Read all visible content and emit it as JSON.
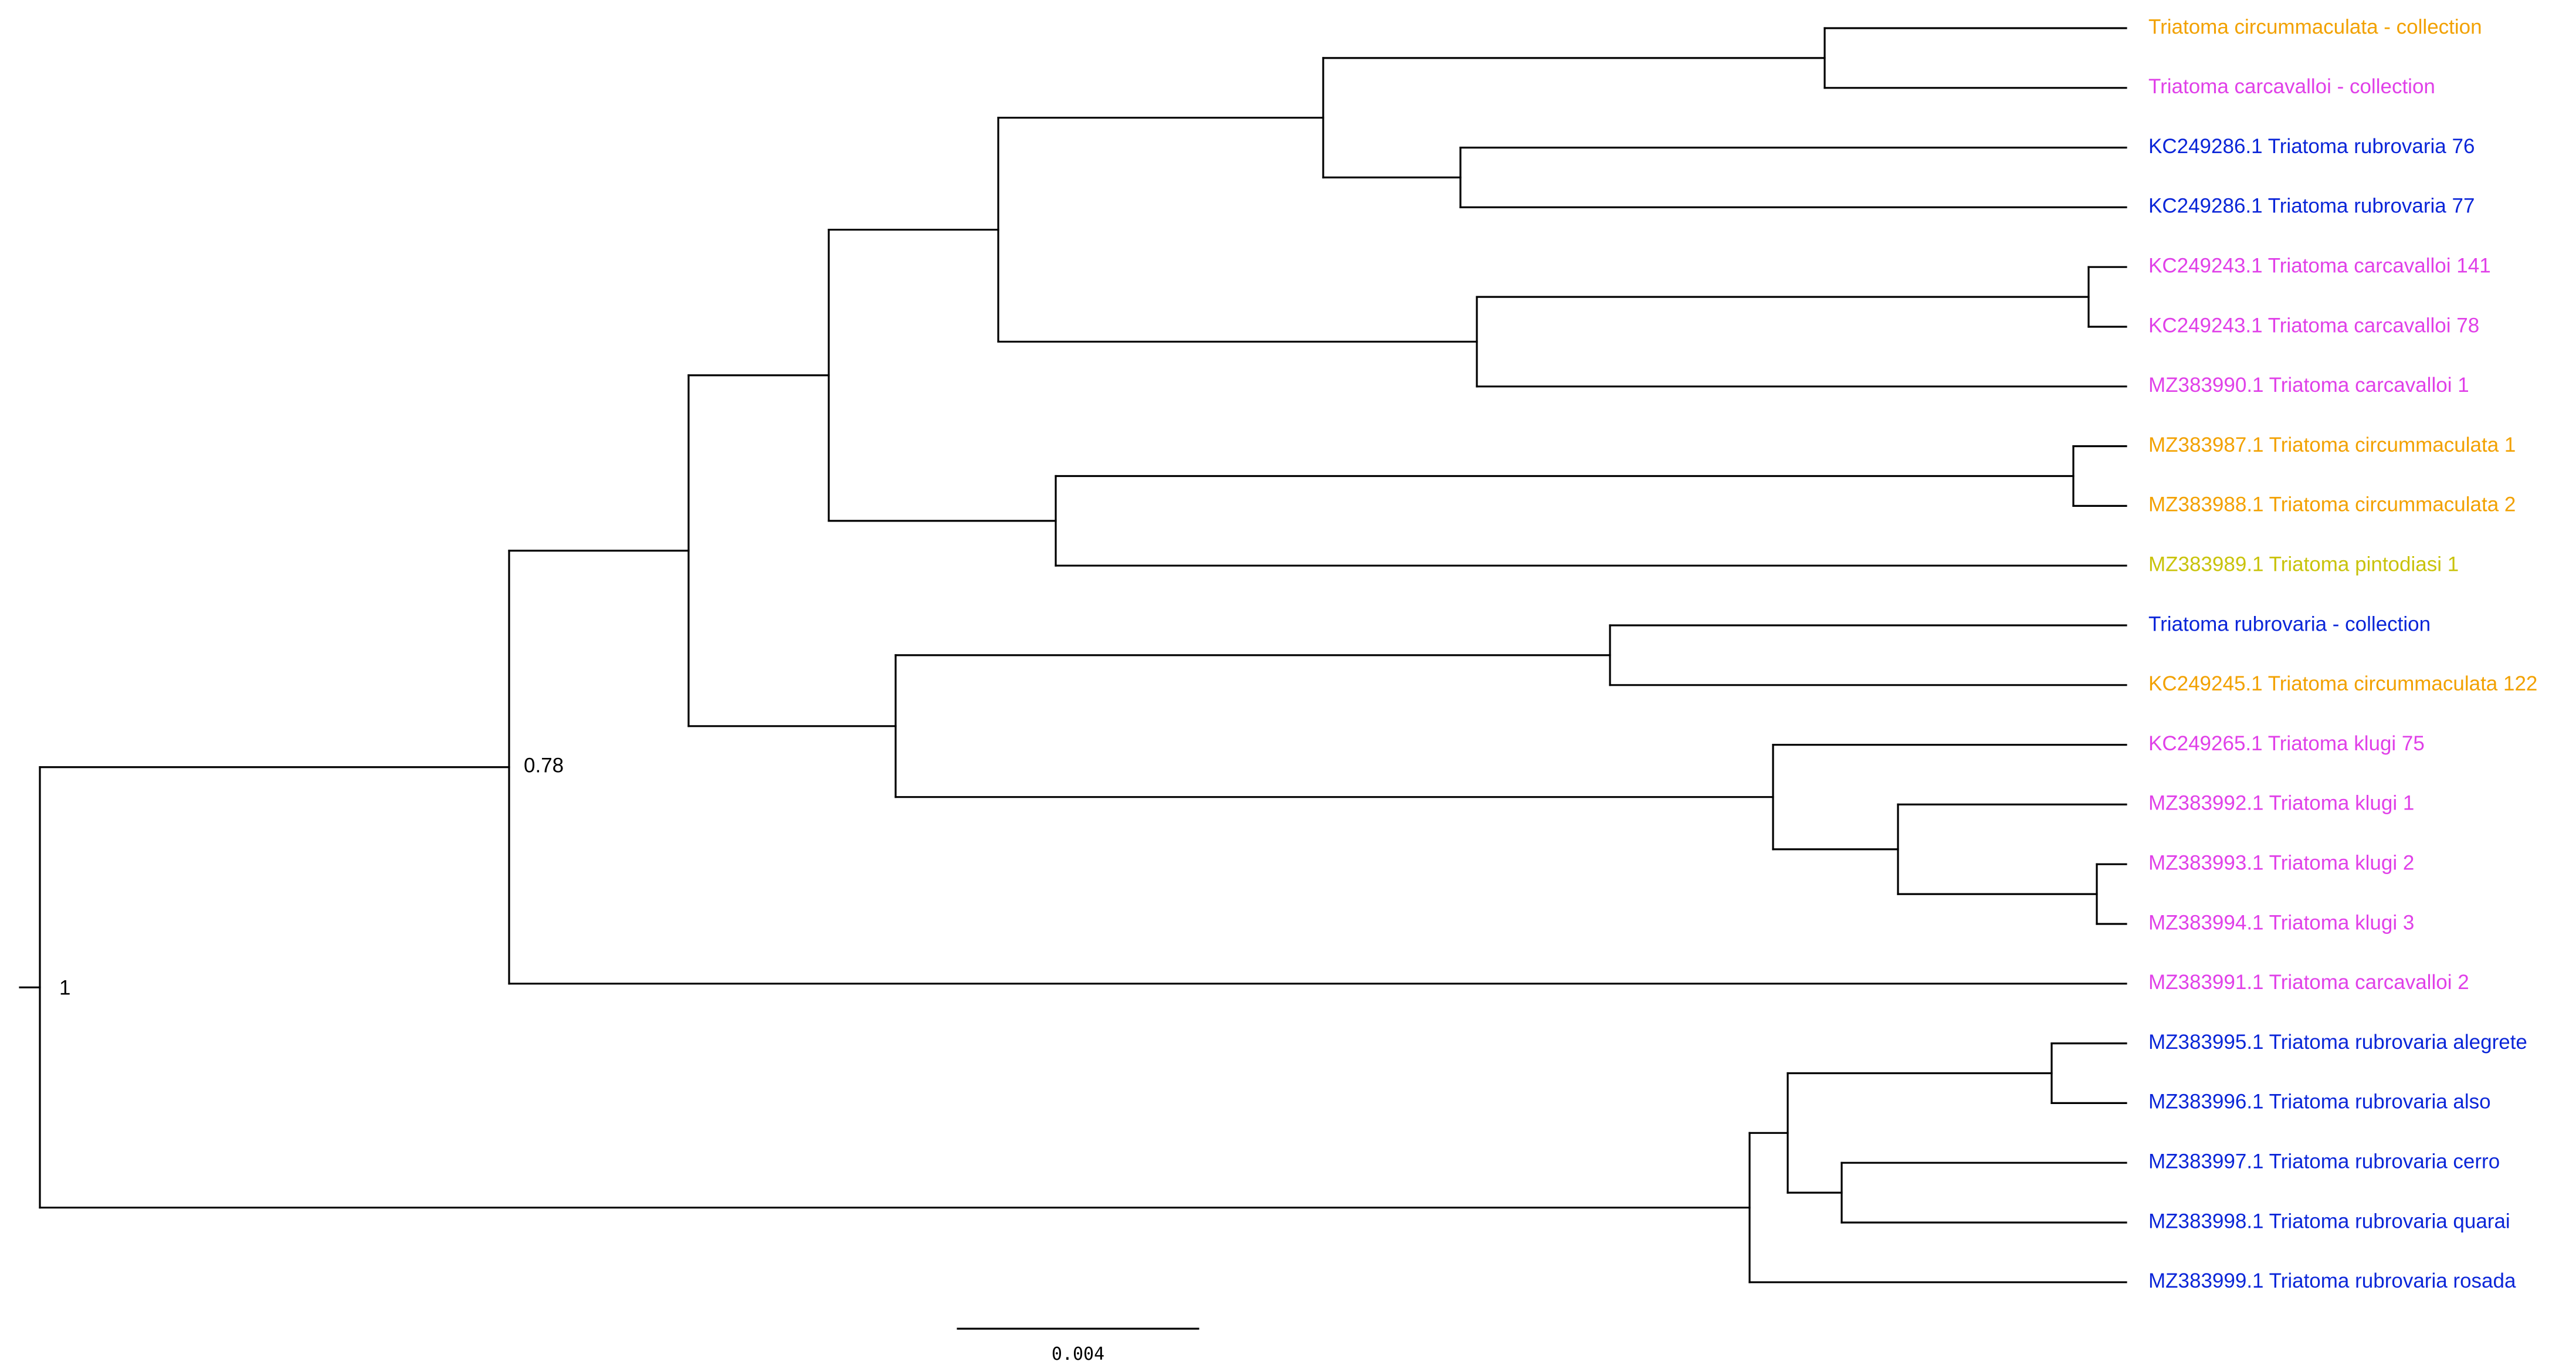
{
  "colors": {
    "orange": "#f2a100",
    "magenta": "#e040e8",
    "blue": "#0a25d8",
    "yellow": "#c9c20a"
  },
  "taxa": [
    {
      "id": "t1",
      "label": "Triatoma circummaculata - collection",
      "color": "orange"
    },
    {
      "id": "t2",
      "label": "Triatoma carcavalloi - collection",
      "color": "magenta"
    },
    {
      "id": "t3",
      "label": "KC249286.1 Triatoma rubrovaria 76",
      "color": "blue"
    },
    {
      "id": "t4",
      "label": "KC249286.1 Triatoma rubrovaria 77",
      "color": "blue"
    },
    {
      "id": "t5",
      "label": "KC249243.1 Triatoma carcavalloi 141",
      "color": "magenta"
    },
    {
      "id": "t6",
      "label": "KC249243.1 Triatoma carcavalloi 78",
      "color": "magenta"
    },
    {
      "id": "t7",
      "label": "MZ383990.1 Triatoma carcavalloi 1",
      "color": "magenta"
    },
    {
      "id": "t8",
      "label": "MZ383987.1 Triatoma circummaculata 1",
      "color": "orange"
    },
    {
      "id": "t9",
      "label": "MZ383988.1 Triatoma circummaculata 2",
      "color": "orange"
    },
    {
      "id": "t10",
      "label": "MZ383989.1 Triatoma pintodiasi 1",
      "color": "yellow"
    },
    {
      "id": "t11",
      "label": "Triatoma rubrovaria - collection",
      "color": "blue"
    },
    {
      "id": "t12",
      "label": "KC249245.1 Triatoma circummaculata 122",
      "color": "orange"
    },
    {
      "id": "t13",
      "label": "KC249265.1 Triatoma klugi 75",
      "color": "magenta"
    },
    {
      "id": "t14",
      "label": "MZ383992.1 Triatoma klugi 1",
      "color": "magenta"
    },
    {
      "id": "t15",
      "label": "MZ383993.1 Triatoma klugi 2",
      "color": "magenta"
    },
    {
      "id": "t16",
      "label": "MZ383994.1 Triatoma klugi 3",
      "color": "magenta"
    },
    {
      "id": "t17",
      "label": "MZ383991.1 Triatoma carcavalloi 2",
      "color": "magenta"
    },
    {
      "id": "t18",
      "label": "MZ383995.1 Triatoma rubrovaria alegrete",
      "color": "blue"
    },
    {
      "id": "t19",
      "label": "MZ383996.1 Triatoma rubrovaria also",
      "color": "blue"
    },
    {
      "id": "t20",
      "label": "MZ383997.1 Triatoma rubrovaria cerro",
      "color": "blue"
    },
    {
      "id": "t21",
      "label": "MZ383998.1 Triatoma rubrovaria quarai",
      "color": "blue"
    },
    {
      "id": "t22",
      "label": "MZ383999.1 Triatoma rubrovaria rosada",
      "color": "blue"
    }
  ],
  "support_values": {
    "root": "1",
    "ingroup": "0.78"
  },
  "scale_bar": {
    "label": "0.004"
  }
}
